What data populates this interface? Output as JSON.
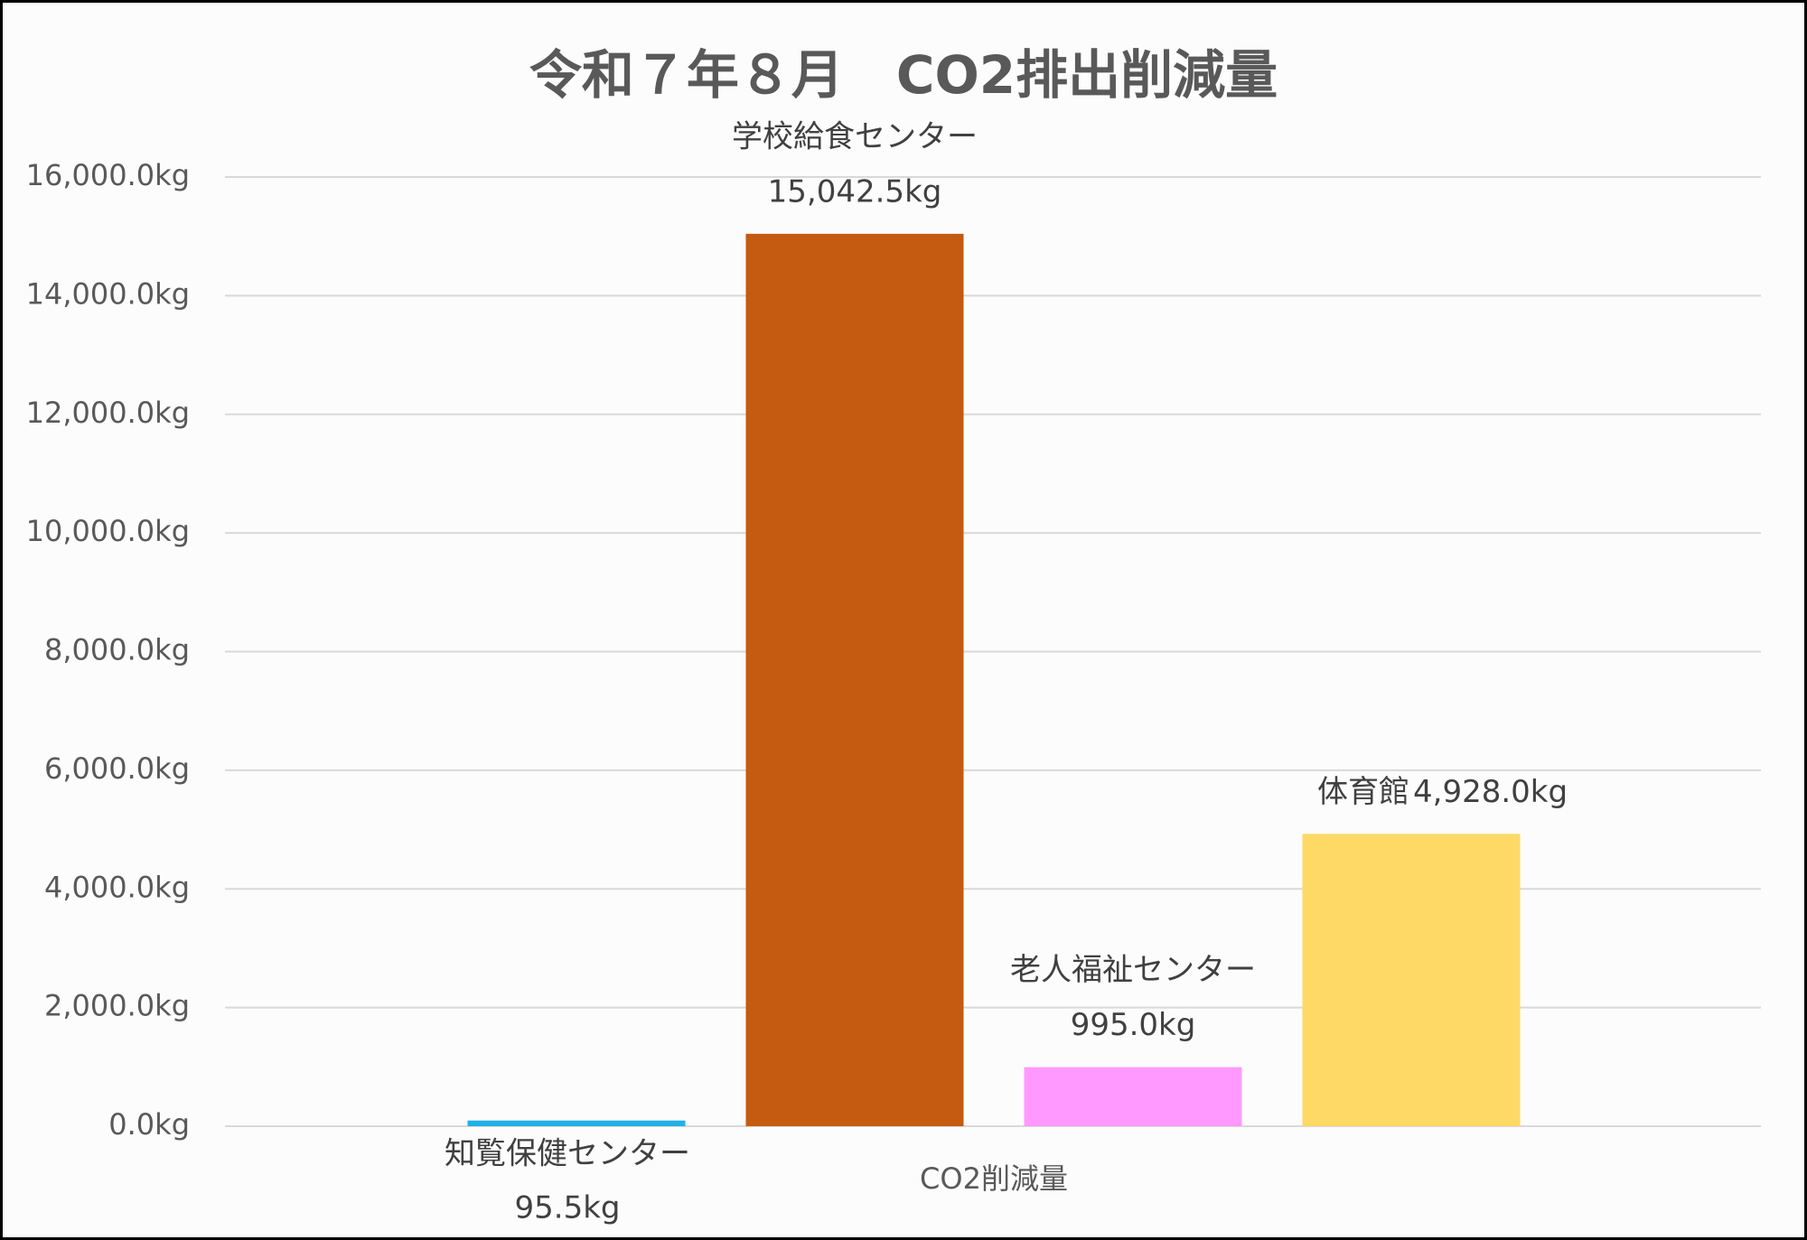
{
  "chart_data": {
    "type": "bar",
    "title": "令和７年８月　CO2排出削減量",
    "categories": [
      "CO2削減量"
    ],
    "series": [
      {
        "name": "知覧保健センター",
        "color": "#1fb0e8",
        "values": [
          95.5
        ],
        "value_labels": [
          "95.5kg"
        ]
      },
      {
        "name": "学校給食センター",
        "color": "#c55a11",
        "values": [
          15042.5
        ],
        "value_labels": [
          "15,042.5kg"
        ]
      },
      {
        "name": "老人福祉センター",
        "color": "#ff99ff",
        "values": [
          995.0
        ],
        "value_labels": [
          "995.0kg"
        ]
      },
      {
        "name": "体育館",
        "color": "#ffd966",
        "values": [
          4928.0
        ],
        "value_labels": [
          "4,928.0kg"
        ]
      }
    ],
    "ylim": [
      0,
      16000
    ],
    "yticks": [
      {
        "value": 0,
        "label": "0.0kg"
      },
      {
        "value": 2000,
        "label": "2,000.0kg"
      },
      {
        "value": 4000,
        "label": "4,000.0kg"
      },
      {
        "value": 6000,
        "label": "6,000.0kg"
      },
      {
        "value": 8000,
        "label": "8,000.0kg"
      },
      {
        "value": 10000,
        "label": "10,000.0kg"
      },
      {
        "value": 12000,
        "label": "12,000.0kg"
      },
      {
        "value": 14000,
        "label": "14,000.0kg"
      },
      {
        "value": 16000,
        "label": "16,000.0kg"
      }
    ],
    "grid": true
  }
}
